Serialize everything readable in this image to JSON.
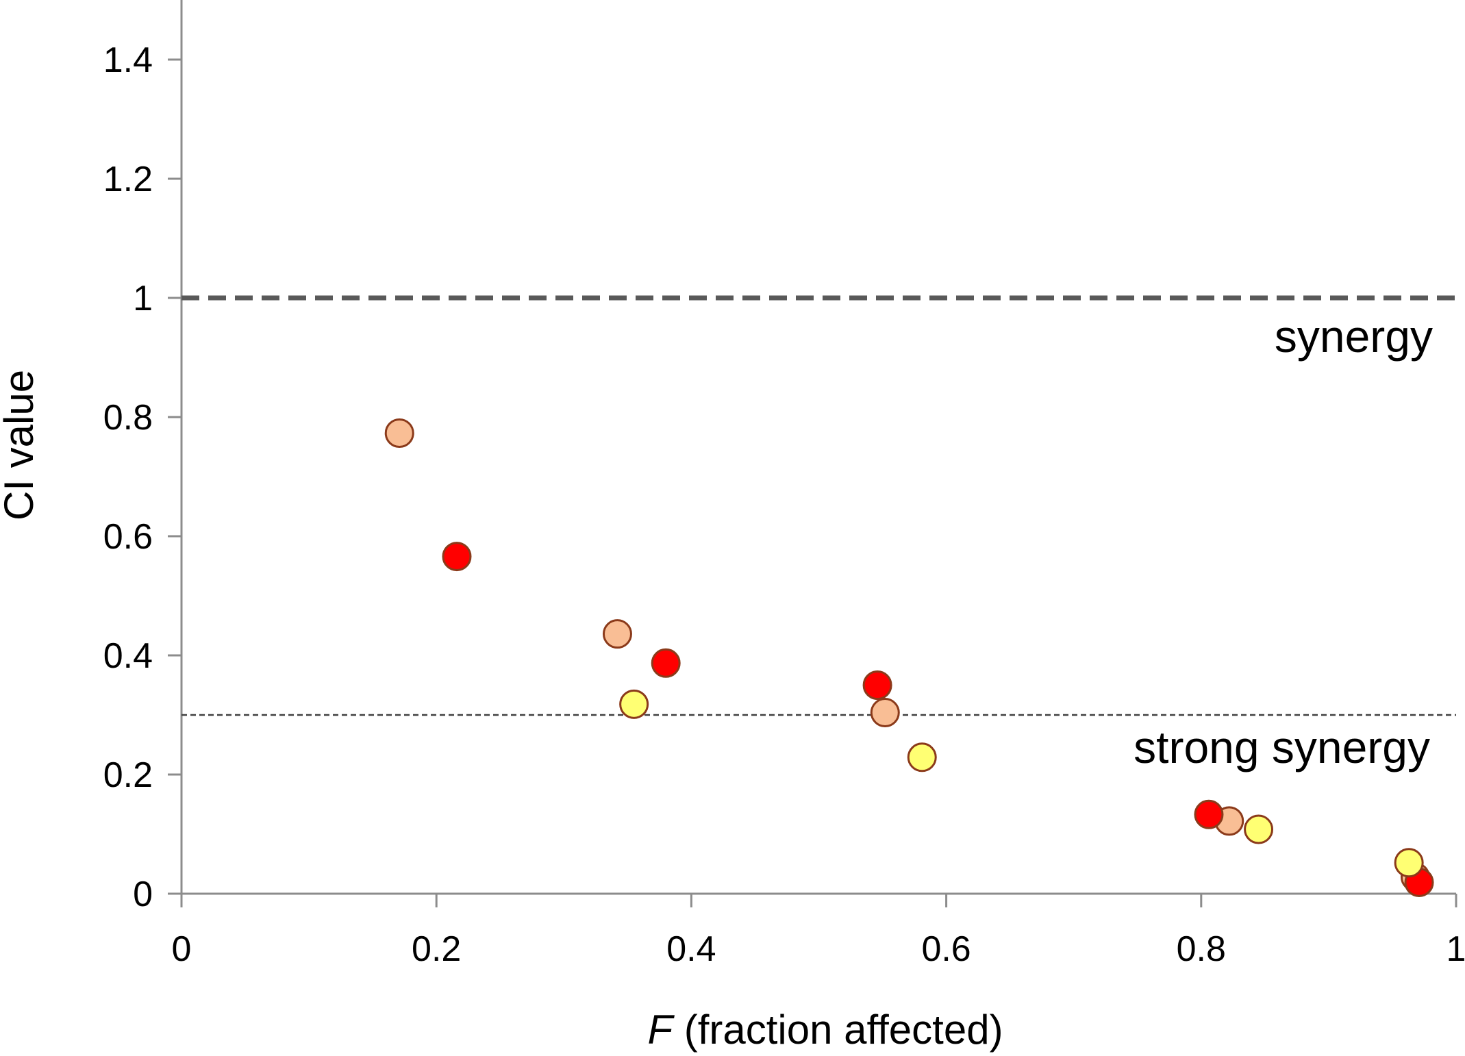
{
  "chart_data": {
    "type": "scatter",
    "title": "",
    "xlabel_var": "F",
    "xlabel_rest": " (fraction affected)",
    "ylabel": "CI value",
    "xlim": [
      0,
      1
    ],
    "ylim": [
      0,
      1.5
    ],
    "x_ticks": [
      0,
      0.2,
      0.4,
      0.6,
      0.8,
      1
    ],
    "x_tick_labels": [
      "0",
      "0.2",
      "0.4",
      "0.6",
      "0.8",
      "1"
    ],
    "y_ticks": [
      0,
      0.2,
      0.4,
      0.6,
      0.8,
      1,
      1.2,
      1.4
    ],
    "y_tick_labels": [
      "0",
      "0.2",
      "0.4",
      "0.6",
      "0.8",
      "1",
      "1.2",
      "1.4"
    ],
    "grid": false,
    "reference_lines": [
      {
        "name": "synergy-threshold",
        "y": 1.0,
        "style": "thick-dashed",
        "label": "synergy"
      },
      {
        "name": "strong-synergy-threshold",
        "y": 0.3,
        "style": "thin-dashed",
        "label": "strong synergy"
      }
    ],
    "series": [
      {
        "name": "series-peach",
        "color": "#F9BE95",
        "edge": "#8B3A1A",
        "x": [
          0.171,
          0.342,
          0.552,
          0.822,
          0.968
        ],
        "y": [
          0.773,
          0.436,
          0.304,
          0.122,
          0.028
        ]
      },
      {
        "name": "series-red",
        "color": "#FF0000",
        "edge": "#8B3A1A",
        "x": [
          0.216,
          0.38,
          0.546,
          0.806,
          0.971
        ],
        "y": [
          0.566,
          0.387,
          0.35,
          0.133,
          0.019
        ]
      },
      {
        "name": "series-yellow",
        "color": "#FFFF73",
        "edge": "#8B3A1A",
        "x": [
          0.355,
          0.581,
          0.845,
          0.963
        ],
        "y": [
          0.318,
          0.229,
          0.108,
          0.052
        ]
      }
    ]
  }
}
